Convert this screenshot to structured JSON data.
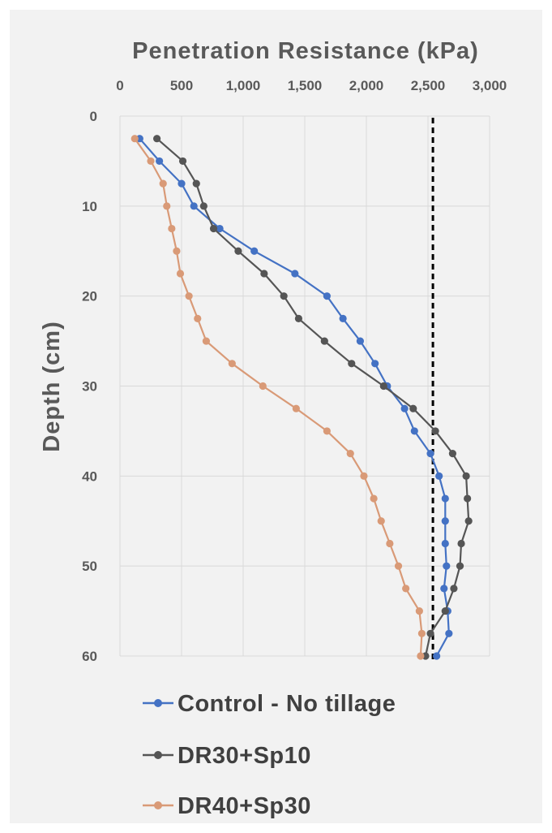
{
  "chart_data": {
    "type": "line",
    "xlabel": "Penetration Resistance (kPa)",
    "ylabel": "Depth (cm)",
    "xlim": [
      0,
      3000
    ],
    "ylim": [
      0,
      60
    ],
    "x_axis_position": "top",
    "y_axis_inverted": true,
    "x_ticks": [
      "0",
      "500",
      "1,000",
      "1,500",
      "2,000",
      "2,500",
      "3,000"
    ],
    "y_ticks": [
      "0",
      "10",
      "20",
      "30",
      "40",
      "50",
      "60"
    ],
    "x_tick_values": [
      0,
      500,
      1000,
      1500,
      2000,
      2500,
      3000
    ],
    "y_tick_values": [
      0,
      10,
      20,
      30,
      40,
      50,
      60
    ],
    "grid": true,
    "legend_position": "bottom",
    "threshold_line": {
      "x": 2540,
      "style": "dashed",
      "color": "#000000"
    },
    "series": [
      {
        "name": "Control - No tillage",
        "color": "#4472c4",
        "points": [
          [
            160,
            2.5
          ],
          [
            320,
            5
          ],
          [
            500,
            7.5
          ],
          [
            600,
            10
          ],
          [
            810,
            12.5
          ],
          [
            1090,
            15
          ],
          [
            1420,
            17.5
          ],
          [
            1680,
            20
          ],
          [
            1810,
            22.5
          ],
          [
            1950,
            25
          ],
          [
            2070,
            27.5
          ],
          [
            2170,
            30
          ],
          [
            2310,
            32.5
          ],
          [
            2390,
            35
          ],
          [
            2520,
            37.5
          ],
          [
            2590,
            40
          ],
          [
            2640,
            42.5
          ],
          [
            2640,
            45
          ],
          [
            2640,
            47.5
          ],
          [
            2650,
            50
          ],
          [
            2630,
            52.5
          ],
          [
            2660,
            55
          ],
          [
            2670,
            57.5
          ],
          [
            2570,
            60
          ]
        ]
      },
      {
        "name": "DR30+Sp10",
        "color": "#555555",
        "points": [
          [
            300,
            2.5
          ],
          [
            510,
            5
          ],
          [
            620,
            7.5
          ],
          [
            680,
            10
          ],
          [
            760,
            12.5
          ],
          [
            960,
            15
          ],
          [
            1170,
            17.5
          ],
          [
            1330,
            20
          ],
          [
            1450,
            22.5
          ],
          [
            1660,
            25
          ],
          [
            1880,
            27.5
          ],
          [
            2140,
            30
          ],
          [
            2380,
            32.5
          ],
          [
            2560,
            35
          ],
          [
            2700,
            37.5
          ],
          [
            2810,
            40
          ],
          [
            2820,
            42.5
          ],
          [
            2830,
            45
          ],
          [
            2770,
            47.5
          ],
          [
            2760,
            50
          ],
          [
            2710,
            52.5
          ],
          [
            2640,
            55
          ],
          [
            2520,
            57.5
          ],
          [
            2480,
            60
          ]
        ]
      },
      {
        "name": "DR40+Sp30",
        "color": "#d99a77",
        "points": [
          [
            120,
            2.5
          ],
          [
            250,
            5
          ],
          [
            350,
            7.5
          ],
          [
            380,
            10
          ],
          [
            420,
            12.5
          ],
          [
            460,
            15
          ],
          [
            490,
            17.5
          ],
          [
            560,
            20
          ],
          [
            630,
            22.5
          ],
          [
            700,
            25
          ],
          [
            910,
            27.5
          ],
          [
            1160,
            30
          ],
          [
            1430,
            32.5
          ],
          [
            1680,
            35
          ],
          [
            1870,
            37.5
          ],
          [
            1980,
            40
          ],
          [
            2060,
            42.5
          ],
          [
            2120,
            45
          ],
          [
            2190,
            47.5
          ],
          [
            2260,
            50
          ],
          [
            2320,
            52.5
          ],
          [
            2430,
            55
          ],
          [
            2450,
            57.5
          ],
          [
            2440,
            60
          ]
        ]
      }
    ]
  }
}
